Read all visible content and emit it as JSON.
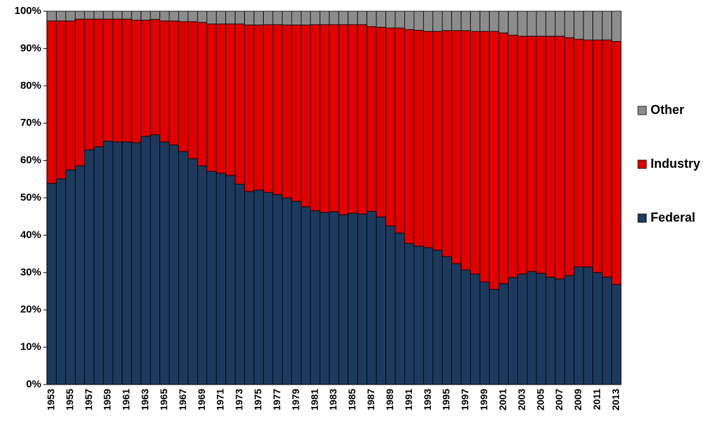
{
  "chart_data": {
    "type": "stacked_bar",
    "categories": [
      "1953",
      null,
      "1955",
      null,
      "1957",
      null,
      "1959",
      null,
      "1961",
      null,
      "1963",
      null,
      "1965",
      null,
      "1967",
      null,
      "1969",
      null,
      "1971",
      null,
      "1973",
      null,
      "1975",
      null,
      "1977",
      null,
      "1979",
      null,
      "1981",
      null,
      "1983",
      null,
      "1985",
      null,
      "1987",
      null,
      "1989",
      null,
      "1991",
      null,
      "1993",
      null,
      "1995",
      null,
      "1997",
      null,
      "1999",
      null,
      "2001",
      null,
      "2003",
      null,
      "2005",
      null,
      "2007",
      null,
      "2009",
      null,
      "2011",
      null,
      "2013"
    ],
    "series": [
      {
        "name": "Federal",
        "color": "#1c3a5e",
        "values": [
          53.9,
          55.1,
          57.5,
          58.6,
          62.9,
          63.7,
          65.2,
          65.0,
          65.0,
          64.8,
          66.5,
          66.9,
          65.0,
          64.2,
          62.4,
          60.5,
          58.6,
          57.1,
          56.6,
          56.0,
          53.7,
          51.7,
          52.1,
          51.5,
          50.9,
          50.0,
          49.1,
          47.6,
          46.6,
          46.1,
          46.3,
          45.5,
          45.9,
          45.7,
          46.4,
          44.9,
          42.5,
          40.6,
          37.8,
          37.1,
          36.7,
          36.0,
          34.3,
          32.4,
          30.7,
          29.6,
          27.5,
          25.5,
          27.0,
          28.7,
          29.6,
          30.3,
          29.8,
          28.8,
          28.3,
          29.2,
          31.5,
          31.5,
          30.0,
          28.8,
          26.8
        ]
      },
      {
        "name": "Industry",
        "color": "#e00000",
        "values": [
          43.5,
          42.3,
          39.9,
          39.3,
          35.0,
          34.2,
          32.7,
          32.9,
          32.9,
          32.8,
          31.1,
          30.9,
          32.4,
          33.2,
          34.8,
          36.7,
          38.4,
          39.5,
          40.0,
          40.6,
          42.9,
          44.6,
          44.2,
          44.9,
          45.5,
          46.3,
          47.2,
          48.7,
          49.8,
          50.3,
          50.1,
          50.9,
          50.5,
          50.7,
          49.5,
          50.8,
          53.0,
          54.9,
          57.3,
          57.8,
          57.9,
          58.6,
          60.5,
          62.4,
          64.1,
          65.0,
          67.1,
          69.1,
          67.2,
          64.9,
          63.7,
          63.0,
          63.5,
          64.5,
          65.0,
          63.7,
          61.0,
          60.8,
          62.3,
          63.5,
          65.1
        ]
      },
      {
        "name": "Other",
        "color": "#8c8c8c",
        "values": [
          2.6,
          2.6,
          2.6,
          2.1,
          2.1,
          2.1,
          2.1,
          2.1,
          2.1,
          2.4,
          2.4,
          2.2,
          2.6,
          2.6,
          2.8,
          2.8,
          3.0,
          3.4,
          3.4,
          3.4,
          3.4,
          3.7,
          3.7,
          3.6,
          3.6,
          3.7,
          3.7,
          3.7,
          3.6,
          3.6,
          3.6,
          3.6,
          3.6,
          3.6,
          4.1,
          4.3,
          4.5,
          4.5,
          4.9,
          5.1,
          5.4,
          5.4,
          5.2,
          5.2,
          5.2,
          5.4,
          5.4,
          5.4,
          5.8,
          6.4,
          6.7,
          6.7,
          6.7,
          6.7,
          6.7,
          7.1,
          7.5,
          7.7,
          7.7,
          7.7,
          8.1
        ]
      }
    ],
    "ylim": [
      0,
      100
    ],
    "yticks": [
      {
        "value": 0,
        "label": "0%"
      },
      {
        "value": 10,
        "label": "10%"
      },
      {
        "value": 20,
        "label": "20%"
      },
      {
        "value": 30,
        "label": "30%"
      },
      {
        "value": 40,
        "label": "40%"
      },
      {
        "value": 50,
        "label": "50%"
      },
      {
        "value": 60,
        "label": "60%"
      },
      {
        "value": 70,
        "label": "70%"
      },
      {
        "value": 80,
        "label": "80%"
      },
      {
        "value": 90,
        "label": "90%"
      },
      {
        "value": 100,
        "label": "100%"
      }
    ],
    "grid": false,
    "legend": "right"
  }
}
